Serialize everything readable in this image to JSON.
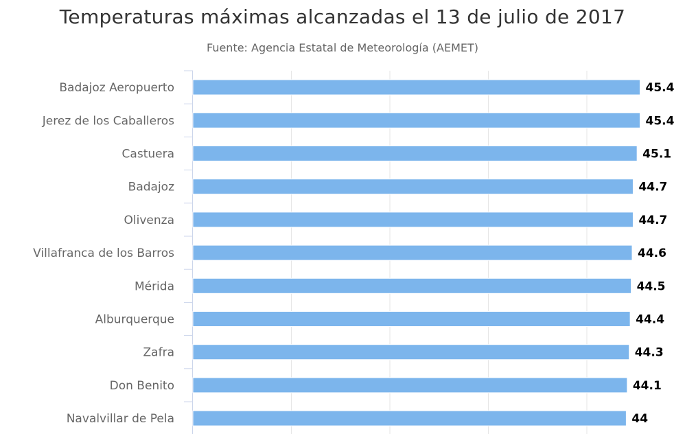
{
  "chart_data": {
    "type": "bar",
    "orientation": "horizontal",
    "title": "Temperaturas máximas alcanzadas el 13 de julio de 2017",
    "subtitle": "Fuente: Agencia Estatal de Meteorología (AEMET)",
    "categories": [
      "Badajoz Aeropuerto",
      "Jerez de los Caballeros",
      "Castuera",
      "Badajoz",
      "Olivenza",
      "Villafranca de los Barros",
      "Mérida",
      "Alburquerque",
      "Zafra",
      "Don Benito",
      "Navalvillar de Pela"
    ],
    "values": [
      45.4,
      45.4,
      45.1,
      44.7,
      44.7,
      44.6,
      44.5,
      44.4,
      44.3,
      44.1,
      44
    ],
    "data_labels": [
      "45.4",
      "45.4",
      "45.1",
      "44.7",
      "44.7",
      "44.6",
      "44.5",
      "44.4",
      "44.3",
      "44.1",
      "44"
    ],
    "xlim": [
      0,
      50
    ],
    "grid": true,
    "grid_step": 10,
    "bar_color": "#7cb5ec"
  }
}
